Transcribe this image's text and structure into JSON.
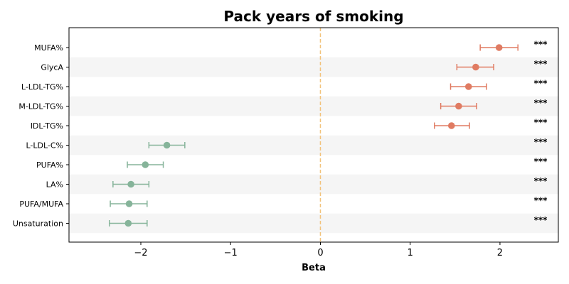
{
  "chart_data": {
    "type": "forest",
    "title": "Pack years of smoking",
    "xlabel": "Beta",
    "ylabel": "",
    "xlim": [
      -2.8,
      2.65
    ],
    "xticks": [
      -2,
      -1,
      0,
      1,
      2
    ],
    "xtick_labels": [
      "−2",
      "−1",
      "0",
      "1",
      "2"
    ],
    "reference_line": 0,
    "grid": false,
    "row_striping": true,
    "colors": {
      "positive": "#e07b62",
      "negative": "#86b49a",
      "reference_line": "#f2c27a",
      "stripe": "#f5f5f5"
    },
    "rows": [
      {
        "label": "MUFA%",
        "beta": 1.99,
        "ci_low": 1.78,
        "ci_high": 2.2,
        "sig": "***"
      },
      {
        "label": "GlycA",
        "beta": 1.73,
        "ci_low": 1.52,
        "ci_high": 1.93,
        "sig": "***"
      },
      {
        "label": "L-LDL-TG%",
        "beta": 1.65,
        "ci_low": 1.45,
        "ci_high": 1.85,
        "sig": "***"
      },
      {
        "label": "M-LDL-TG%",
        "beta": 1.54,
        "ci_low": 1.34,
        "ci_high": 1.74,
        "sig": "***"
      },
      {
        "label": "IDL-TG%",
        "beta": 1.46,
        "ci_low": 1.27,
        "ci_high": 1.66,
        "sig": "***"
      },
      {
        "label": "L-LDL-C%",
        "beta": -1.71,
        "ci_low": -1.91,
        "ci_high": -1.51,
        "sig": "***"
      },
      {
        "label": "PUFA%",
        "beta": -1.95,
        "ci_low": -2.15,
        "ci_high": -1.75,
        "sig": "***"
      },
      {
        "label": "LA%",
        "beta": -2.11,
        "ci_low": -2.31,
        "ci_high": -1.91,
        "sig": "***"
      },
      {
        "label": "PUFA/MUFA",
        "beta": -2.13,
        "ci_low": -2.34,
        "ci_high": -1.93,
        "sig": "***"
      },
      {
        "label": "Unsaturation",
        "beta": -2.14,
        "ci_low": -2.35,
        "ci_high": -1.93,
        "sig": "***"
      }
    ]
  }
}
